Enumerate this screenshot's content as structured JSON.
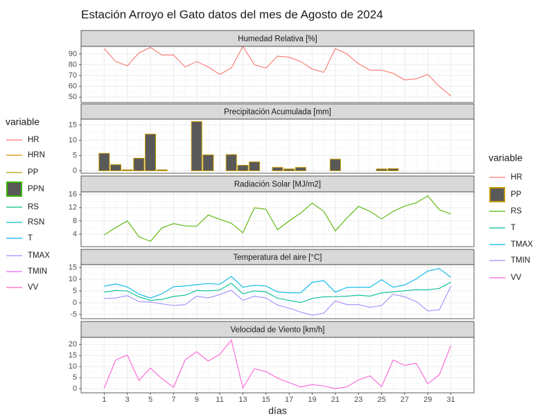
{
  "title": "Estación Arroyo el Gato datos del mes de Agosto de 2024",
  "x_axis": {
    "label": "días",
    "lim": [
      -1,
      33
    ],
    "ticks": [
      1,
      3,
      5,
      7,
      9,
      11,
      13,
      15,
      17,
      19,
      21,
      23,
      25,
      27,
      29,
      31
    ]
  },
  "legends": [
    {
      "title": "variable",
      "items": [
        {
          "name": "HR",
          "color": "#F8766D",
          "key": "line"
        },
        {
          "name": "HRN",
          "color": "#D89000",
          "key": "line"
        },
        {
          "name": "PP",
          "color": "#A3A500",
          "key": "line"
        },
        {
          "name": "PPN",
          "color": "#39B600",
          "key": "box",
          "fill": "#595959"
        },
        {
          "name": "RS",
          "color": "#00BF7D",
          "key": "line"
        },
        {
          "name": "RSN",
          "color": "#00BFC4",
          "key": "line"
        },
        {
          "name": "T",
          "color": "#00B0F6",
          "key": "line"
        },
        {
          "name": "TMAX",
          "color": "#9590FF",
          "key": "line"
        },
        {
          "name": "TMIN",
          "color": "#E76BF3",
          "key": "line"
        },
        {
          "name": "VV",
          "color": "#FF62BC",
          "key": "line"
        }
      ]
    },
    {
      "title": "variable",
      "items": [
        {
          "name": "HR",
          "color": "#F8766D",
          "key": "line"
        },
        {
          "name": "PP",
          "color": "#C49A00",
          "key": "box",
          "fill": "#595959"
        },
        {
          "name": "RS",
          "color": "#53B400",
          "key": "line"
        },
        {
          "name": "T",
          "color": "#00C094",
          "key": "line"
        },
        {
          "name": "TMAX",
          "color": "#00B6EB",
          "key": "line"
        },
        {
          "name": "TMIN",
          "color": "#A58AFF",
          "key": "line"
        },
        {
          "name": "VV",
          "color": "#FB61D7",
          "key": "line"
        }
      ]
    }
  ],
  "chart_data": [
    {
      "type": "line",
      "strip": "Humedad Relativa [%]",
      "grid": true,
      "x": [
        1,
        2,
        3,
        4,
        5,
        6,
        7,
        8,
        9,
        10,
        11,
        12,
        13,
        14,
        15,
        16,
        17,
        18,
        19,
        20,
        21,
        22,
        23,
        24,
        25,
        26,
        27,
        28,
        29,
        30,
        31
      ],
      "ylim": [
        45,
        97
      ],
      "yticks": [
        50,
        60,
        70,
        80,
        90
      ],
      "series": [
        {
          "name": "HR",
          "color": "#F8766D",
          "values": [
            95,
            83,
            79,
            91,
            96,
            89,
            89,
            78,
            83,
            78,
            71,
            77,
            97,
            80,
            77,
            88,
            87,
            83,
            76,
            73,
            95,
            90,
            81,
            75,
            75,
            72,
            66,
            67,
            71,
            60,
            51
          ]
        }
      ]
    },
    {
      "type": "bar",
      "strip": "Precipitación Acumulada [mm]",
      "grid": true,
      "x": [
        1,
        2,
        3,
        4,
        5,
        6,
        7,
        8,
        9,
        10,
        11,
        12,
        13,
        14,
        15,
        16,
        17,
        18,
        19,
        20,
        21,
        22,
        23,
        24,
        25,
        26,
        27,
        28,
        29,
        30,
        31
      ],
      "ylim": [
        -0.8,
        16.9
      ],
      "yticks": [
        0,
        5,
        10,
        15
      ],
      "series": [
        {
          "name": "PP",
          "color": "#C49A00",
          "fill": "#595959",
          "values": [
            5.7,
            2.0,
            0.3,
            4.1,
            12.0,
            0.3,
            0,
            0,
            16.1,
            5.2,
            0,
            5.3,
            1.8,
            2.9,
            0,
            1.1,
            0.6,
            1.1,
            0,
            0,
            3.8,
            0,
            0,
            0,
            0.6,
            0.7,
            0,
            0,
            0,
            0,
            0
          ]
        }
      ]
    },
    {
      "type": "line",
      "strip": "Radiación Solar [MJ/m2]",
      "grid": true,
      "x": [
        1,
        2,
        3,
        4,
        5,
        6,
        7,
        8,
        9,
        10,
        11,
        12,
        13,
        14,
        15,
        16,
        17,
        18,
        19,
        20,
        21,
        22,
        23,
        24,
        25,
        26,
        27,
        28,
        29,
        30,
        31
      ],
      "ylim": [
        0.2,
        16.8
      ],
      "yticks": [
        4,
        8,
        12,
        16
      ],
      "series": [
        {
          "name": "RS",
          "color": "#53B400",
          "values": [
            3.7,
            6.0,
            8.0,
            3.2,
            1.8,
            5.9,
            7.2,
            6.5,
            6.4,
            9.8,
            8.5,
            7.3,
            4.4,
            12.0,
            11.5,
            5.3,
            8.0,
            10.4,
            13.4,
            10.9,
            5.0,
            8.9,
            12.4,
            10.9,
            8.6,
            10.9,
            12.5,
            13.5,
            15.6,
            11.4,
            10.1
          ]
        }
      ]
    },
    {
      "type": "line",
      "strip": "Temperatura del aire [°C]",
      "grid": true,
      "x": [
        1,
        2,
        3,
        4,
        5,
        6,
        7,
        8,
        9,
        10,
        11,
        12,
        13,
        14,
        15,
        16,
        17,
        18,
        19,
        20,
        21,
        22,
        23,
        24,
        25,
        26,
        27,
        28,
        29,
        30,
        31
      ],
      "ylim": [
        -6.8,
        16.2
      ],
      "yticks": [
        -5,
        0,
        5,
        10,
        15
      ],
      "series": [
        {
          "name": "T",
          "color": "#00C094",
          "values": [
            4.5,
            5.2,
            5,
            2.5,
            1,
            1.4,
            2.7,
            3.2,
            5.2,
            5,
            5.4,
            8.3,
            3.8,
            5,
            4.6,
            1.9,
            1,
            0.1,
            1.8,
            2.5,
            2.6,
            2.8,
            3.2,
            2.8,
            4.2,
            4.6,
            5.1,
            5.6,
            5.5,
            6.1,
            8.8
          ]
        },
        {
          "name": "TMAX",
          "color": "#00B6EB",
          "values": [
            7,
            8,
            6.7,
            3.7,
            2,
            3.8,
            6.8,
            7.1,
            7.7,
            8.2,
            7.8,
            11.2,
            6.6,
            7.4,
            7.1,
            4.6,
            4.2,
            4.2,
            8.7,
            9.4,
            4.5,
            6.5,
            6.6,
            6.6,
            9.8,
            6.6,
            7.6,
            10.1,
            13.5,
            14.5,
            10.8
          ]
        },
        {
          "name": "TMIN",
          "color": "#A58AFF",
          "values": [
            1.8,
            2,
            3,
            0.5,
            0.3,
            -0.5,
            -1.2,
            -0.8,
            2.8,
            2,
            3.5,
            5.3,
            1,
            2.8,
            2,
            -1,
            -2.3,
            -4,
            -5.3,
            -4.4,
            0.8,
            -0.8,
            -0.8,
            -2,
            -1.2,
            3.6,
            2.5,
            0.5,
            -3.5,
            -3,
            7
          ]
        }
      ]
    },
    {
      "type": "line",
      "strip": "Velocidad de Viento [km/h]",
      "grid": true,
      "x": [
        1,
        2,
        3,
        4,
        5,
        6,
        7,
        8,
        9,
        10,
        11,
        12,
        13,
        14,
        15,
        16,
        17,
        18,
        19,
        20,
        21,
        22,
        23,
        24,
        25,
        26,
        27,
        28,
        29,
        30,
        31
      ],
      "ylim": [
        -1.9,
        23.2
      ],
      "yticks": [
        0,
        5,
        10,
        15,
        20
      ],
      "series": [
        {
          "name": "VV",
          "color": "#FB61D7",
          "values": [
            0.3,
            13,
            15.2,
            3.7,
            9.3,
            4.5,
            0.6,
            13,
            16.7,
            12.5,
            15.5,
            22,
            0.3,
            9,
            7.7,
            4.8,
            2.7,
            0.8,
            1.8,
            1.2,
            0,
            0.8,
            3.9,
            5.8,
            0.9,
            13,
            10.5,
            11.5,
            2.2,
            6.3,
            19.5
          ]
        }
      ]
    }
  ]
}
